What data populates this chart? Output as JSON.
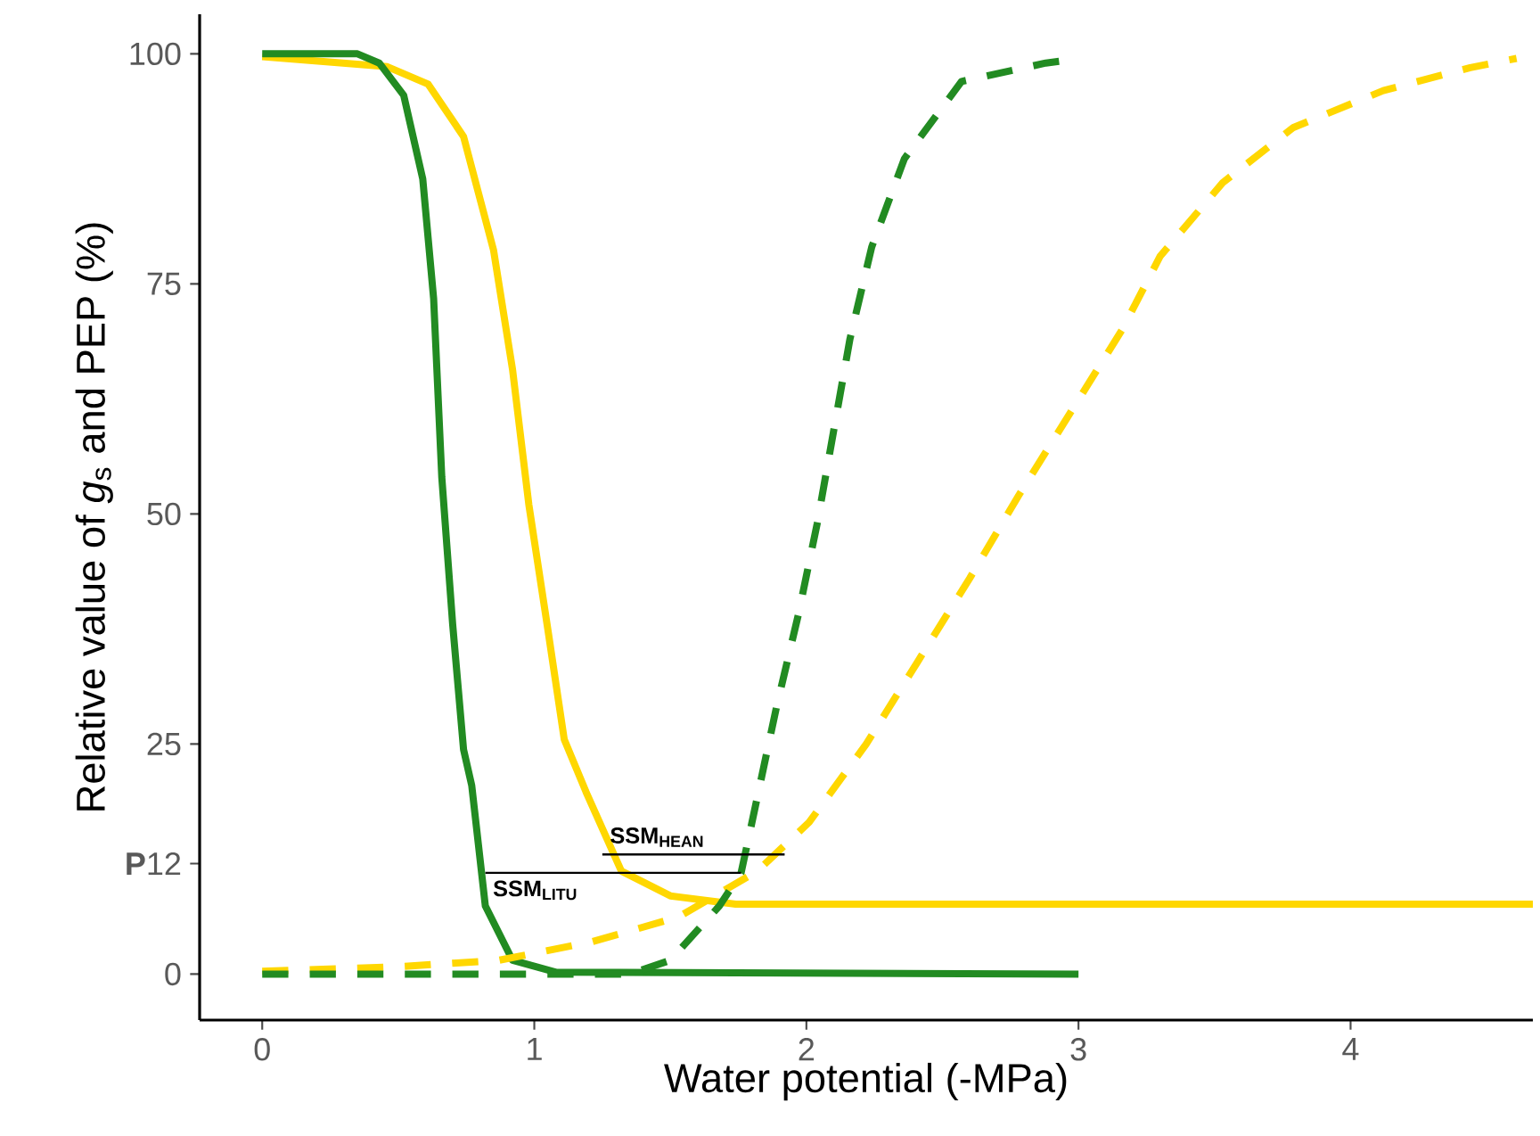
{
  "chart_data": {
    "type": "line",
    "xlabel": "Water potential (-MPa)",
    "ylabel": "Relative value of  *g*$_{s}$ and PEP (%)",
    "xlim": [
      -0.23,
      4.67
    ],
    "ylim": [
      -5,
      104.3
    ],
    "xticks": [
      0,
      1,
      2,
      3,
      4
    ],
    "yticks": [
      0,
      {
        "value": 12,
        "label": "**P**12"
      },
      25,
      50,
      75,
      100
    ],
    "series": [
      {
        "color": "#ffd700",
        "line_style": "solid",
        "x": [
          0,
          0.46,
          0.61,
          0.74,
          0.85,
          0.92,
          0.98,
          1.05,
          1.11,
          1.19,
          1.32,
          1.5,
          1.74,
          4.67
        ],
        "values": [
          99.7,
          98.6,
          96.7,
          91,
          78.7,
          65.7,
          51,
          37.4,
          25.5,
          19.8,
          11.2,
          8.5,
          7.6,
          7.6
        ]
      },
      {
        "color": "#228b22",
        "line_style": "solid",
        "x": [
          0,
          0.35,
          0.43,
          0.52,
          0.59,
          0.63,
          0.66,
          0.7,
          0.74,
          0.77,
          0.82,
          0.92,
          1.08,
          3
        ],
        "values": [
          100,
          100,
          99,
          95.5,
          86.4,
          73.4,
          54,
          38,
          24.4,
          20.5,
          7.4,
          1.5,
          0.2,
          0
        ]
      },
      {
        "color": "#ffd700",
        "line_style": "dashed",
        "x": [
          0,
          0.5,
          0.87,
          1.21,
          1.53,
          1.82,
          2.01,
          2.22,
          2.41,
          2.6,
          2.78,
          2.97,
          3.16,
          3.3,
          3.53,
          3.79,
          4.12,
          4.44,
          4.61
        ],
        "values": [
          0.3,
          0.8,
          1.5,
          3.5,
          6.2,
          11.2,
          16.5,
          25,
          34,
          43,
          52,
          61,
          70,
          78,
          86,
          92,
          96,
          98.5,
          99.5
        ]
      },
      {
        "color": "#228b22",
        "line_style": "dashed",
        "x": [
          0,
          1.35,
          1.5,
          1.68,
          1.76,
          1.8,
          1.89,
          1.97,
          2.04,
          2.1,
          2.16,
          2.24,
          2.36,
          2.57,
          2.88,
          2.96
        ],
        "values": [
          0,
          0,
          1.5,
          7.4,
          11,
          16.5,
          29,
          39,
          49,
          59,
          69,
          79,
          88.6,
          97,
          99,
          99.3
        ]
      },
      {
        "color": "#000000",
        "line_style": "solid",
        "x": [
          0.82,
          1.76
        ],
        "values": [
          11,
          11
        ]
      },
      {
        "color": "#000000",
        "line_style": "solid",
        "x": [
          1.25,
          1.92
        ],
        "values": [
          13,
          13
        ]
      }
    ],
    "annotations": [
      {
        "text": "SSM$_{HEAN}$",
        "x": 1.25,
        "y": 13
      },
      {
        "text": "SSM$_{LITU}$",
        "x": 0.82,
        "y": 11
      }
    ]
  }
}
